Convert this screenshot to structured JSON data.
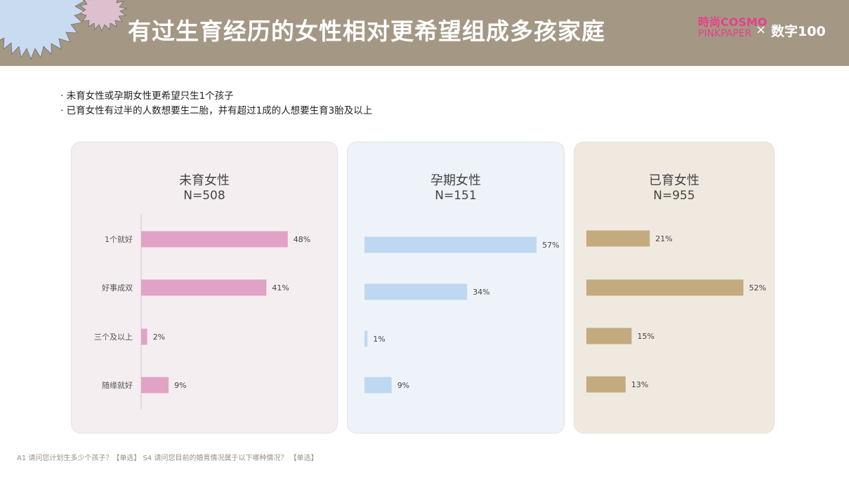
{
  "header": {
    "title": "有过生育经历的女性相对更希望组成多孩家庭",
    "logo_cosmo_line1": "時尚COSMO",
    "logo_cosmo_line2": "PINKPAPER",
    "logo_separator": "×",
    "logo_szb": "数字100"
  },
  "bullets": [
    "未育女性或孕期女性更希望只生1个孩子",
    "已育女性有过半的人数想要生二胎，并有超过1成的人想要生育3胎及以上"
  ],
  "footnote": "A1 请问您计划生多少个孩子？【单选】   S4 请问您目前的婚育情况属于以下哪种情况？ 【单选】",
  "colors": {
    "header_bg": "#a49885",
    "panel1_bg": "#f5eef1",
    "panel2_bg": "#eef3fa",
    "panel3_bg": "#f0e9df",
    "bar1": "#e1a3c5",
    "bar2": "#bfd8f1",
    "bar3": "#c4ab7f"
  },
  "chart_data": [
    {
      "type": "bar",
      "orientation": "horizontal",
      "title": "未育女性",
      "subtitle": "N=508",
      "categories": [
        "1个就好",
        "好事成双",
        "三个及以上",
        "随缘就好"
      ],
      "values": [
        48,
        41,
        2,
        9
      ],
      "value_labels": [
        "48%",
        "41%",
        "2%",
        "9%"
      ]
    },
    {
      "type": "bar",
      "orientation": "horizontal",
      "title": "孕期女性",
      "subtitle": "N=151",
      "categories": [
        "1个就好",
        "好事成双",
        "三个及以上",
        "随缘就好"
      ],
      "values": [
        57,
        34,
        1,
        9
      ],
      "value_labels": [
        "57%",
        "34%",
        "1%",
        "9%"
      ]
    },
    {
      "type": "bar",
      "orientation": "horizontal",
      "title": "已育女性",
      "subtitle": "N=955",
      "categories": [
        "1个就好",
        "好事成双",
        "三个及以上",
        "随缘就好"
      ],
      "values": [
        21,
        52,
        15,
        13
      ],
      "value_labels": [
        "21%",
        "52%",
        "15%",
        "13%"
      ]
    }
  ]
}
